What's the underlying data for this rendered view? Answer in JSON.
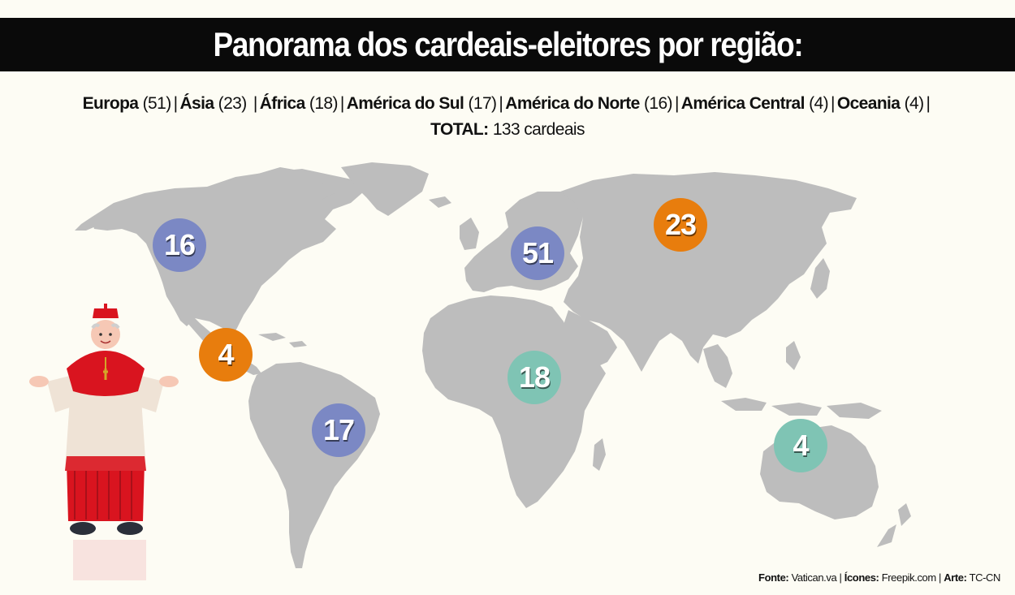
{
  "title": "Panorama dos cardeais-eleitores por região:",
  "legend": {
    "regions": [
      {
        "name": "Europa",
        "count": "(51)"
      },
      {
        "name": "Ásia",
        "count": "(23)"
      },
      {
        "name": "África",
        "count": "(18)"
      },
      {
        "name": "América do Sul",
        "count": "(17)"
      },
      {
        "name": "América do Norte",
        "count": "(16)"
      },
      {
        "name": "América Central",
        "count": "(4)"
      },
      {
        "name": "Oceania",
        "count": "(4)"
      }
    ],
    "separator": "|",
    "total_label": "TOTAL:",
    "total_value": "133 cardeais"
  },
  "markers": [
    {
      "region": "América do Norte",
      "value": "16",
      "color": "#7b88c4"
    },
    {
      "region": "Europa",
      "value": "51",
      "color": "#7b88c4"
    },
    {
      "region": "Ásia",
      "value": "23",
      "color": "#e87d0d"
    },
    {
      "region": "América Central",
      "value": "4",
      "color": "#e87d0d"
    },
    {
      "region": "África",
      "value": "18",
      "color": "#7fc4b4"
    },
    {
      "region": "América do Sul",
      "value": "17",
      "color": "#7b88c4"
    },
    {
      "region": "Oceania",
      "value": "4",
      "color": "#7fc4b4"
    }
  ],
  "colors": {
    "land": "#bdbdbd",
    "background": "#fdfcf4",
    "title_bg": "#0a0a0a",
    "cassock_red": "#d9141f",
    "surplice": "#efe3d6"
  },
  "illustration": "cardinal-figure",
  "source": {
    "fonte_label": "Fonte:",
    "fonte_value": "Vatican.va",
    "icones_label": "Ícones:",
    "icones_value": "Freepik.com",
    "arte_label": "Arte:",
    "arte_value": "TC-CN",
    "separator": "|"
  }
}
